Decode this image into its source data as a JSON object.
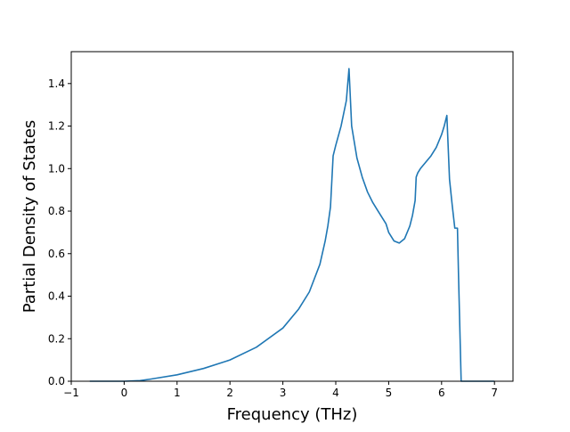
{
  "chart_data": {
    "type": "line",
    "title": "",
    "xlabel": "Frequency (THz)",
    "ylabel": "Partial Density of States",
    "xlim": [
      -1,
      7.35
    ],
    "ylim": [
      0,
      1.55
    ],
    "xticks": [
      -1,
      0,
      1,
      2,
      3,
      4,
      5,
      6,
      7
    ],
    "xtick_labels": [
      "−1",
      "0",
      "1",
      "2",
      "3",
      "4",
      "5",
      "6",
      "7"
    ],
    "yticks": [
      0.0,
      0.2,
      0.4,
      0.6,
      0.8,
      1.0,
      1.2,
      1.4
    ],
    "ytick_labels": [
      "0.0",
      "0.2",
      "0.4",
      "0.6",
      "0.8",
      "1.0",
      "1.2",
      "1.4"
    ],
    "grid": false,
    "legend": "none",
    "line_color": "#1f77b4",
    "series": [
      {
        "x": [
          -0.65,
          0.0,
          0.3,
          0.5,
          1.0,
          1.5,
          2.0,
          2.5,
          3.0,
          3.3,
          3.5,
          3.7,
          3.8,
          3.85,
          3.9,
          3.95,
          4.0,
          4.1,
          4.2,
          4.25,
          4.3,
          4.4,
          4.5,
          4.6,
          4.7,
          4.8,
          4.9,
          4.95,
          5.0,
          5.1,
          5.2,
          5.3,
          5.4,
          5.45,
          5.5,
          5.52,
          5.55,
          5.6,
          5.7,
          5.8,
          5.9,
          6.0,
          6.05,
          6.1,
          6.15,
          6.2,
          6.25,
          6.3,
          6.32,
          6.35,
          6.37,
          6.5,
          7.0
        ],
        "y": [
          0.0,
          0.0,
          0.003,
          0.01,
          0.03,
          0.06,
          0.1,
          0.16,
          0.25,
          0.34,
          0.42,
          0.55,
          0.66,
          0.73,
          0.82,
          1.06,
          1.11,
          1.2,
          1.32,
          1.47,
          1.2,
          1.05,
          0.96,
          0.89,
          0.84,
          0.8,
          0.76,
          0.74,
          0.7,
          0.66,
          0.65,
          0.67,
          0.73,
          0.78,
          0.85,
          0.96,
          0.98,
          1.0,
          1.03,
          1.06,
          1.1,
          1.16,
          1.2,
          1.25,
          0.95,
          0.83,
          0.72,
          0.72,
          0.5,
          0.2,
          0.0,
          0.0,
          0.0
        ]
      }
    ]
  }
}
